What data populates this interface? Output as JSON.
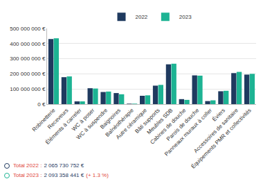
{
  "chart_data": {
    "type": "bar",
    "categories": [
      "Robinetterie",
      "Receveurs",
      "Éléments à carreler",
      "WC à poser",
      "WC à suspendre",
      "Baignoires",
      "Balnéothérapie",
      "Autre céramique",
      "Bâti supports",
      "Meubles SDB",
      "Cabines de douche",
      "Parois de douche",
      "Panneaux muraux à coller",
      "Éviers",
      "Accessoires de sanitaire",
      "Équipements PMR et collectivités"
    ],
    "series": [
      {
        "name": "2022",
        "color": "#1f3a5f",
        "values": [
          430000000,
          178000000,
          18000000,
          105000000,
          80000000,
          73000000,
          3000000,
          55000000,
          122000000,
          263000000,
          33000000,
          190000000,
          20000000,
          85000000,
          205000000,
          195000000
        ]
      },
      {
        "name": "2023",
        "color": "#1db393",
        "values": [
          435000000,
          183000000,
          18000000,
          103000000,
          83000000,
          65000000,
          3000000,
          58000000,
          127000000,
          267000000,
          28000000,
          188000000,
          25000000,
          88000000,
          213000000,
          200000000
        ]
      }
    ],
    "ylim": [
      0,
      500000000
    ],
    "yticks": [
      {
        "value": 0,
        "label": "0 €"
      },
      {
        "value": 100000000,
        "label": "100 000 000 €"
      },
      {
        "value": 200000000,
        "label": "200 000 000 €"
      },
      {
        "value": 300000000,
        "label": "300 000 000 €"
      },
      {
        "value": 400000000,
        "label": "400 000 000 €"
      },
      {
        "value": 500000000,
        "label": "500 000 000 €"
      }
    ],
    "grid": true,
    "legend": "top",
    "totals": [
      {
        "label": "Total 2022 :",
        "value": "2 065 730 752 €"
      },
      {
        "label": "Total 2023 :",
        "value": "2 093 358 441 €",
        "change": "(+ 1.3 %)"
      }
    ]
  }
}
